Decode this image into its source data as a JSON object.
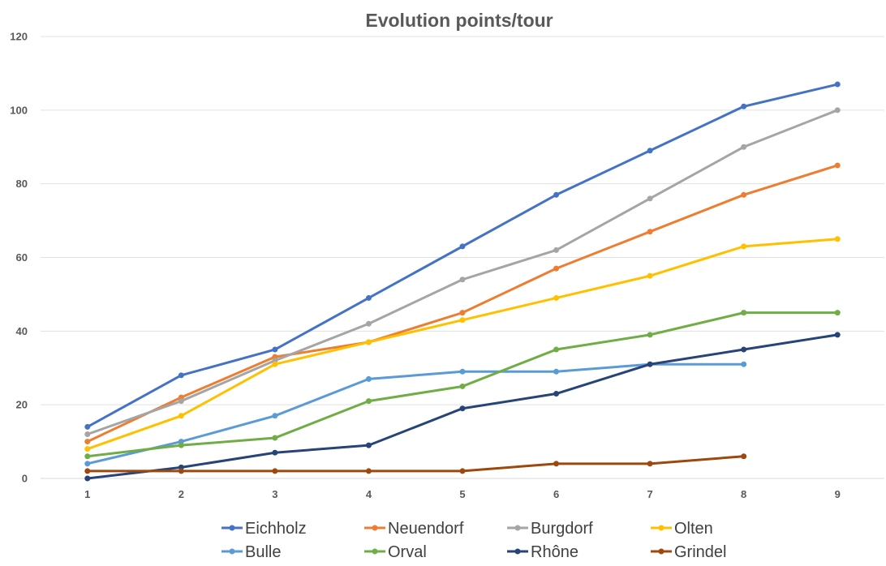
{
  "chart_data": {
    "type": "line",
    "title": "Evolution points/tour",
    "xlabel": "",
    "ylabel": "",
    "x": [
      1,
      2,
      3,
      4,
      5,
      6,
      7,
      8,
      9
    ],
    "ylim": [
      0,
      120
    ],
    "yticks": [
      0,
      20,
      40,
      60,
      80,
      100,
      120
    ],
    "grid": true,
    "legend_position": "bottom",
    "series": [
      {
        "name": "Eichholz",
        "color": "#4472C4",
        "values": [
          14,
          28,
          35,
          49,
          63,
          77,
          89,
          101,
          107
        ]
      },
      {
        "name": "Neuendorf",
        "color": "#ED7D31",
        "values": [
          10,
          22,
          33,
          37,
          45,
          57,
          67,
          77,
          85
        ]
      },
      {
        "name": "Burgdorf",
        "color": "#A5A5A5",
        "values": [
          12,
          21,
          32,
          42,
          54,
          62,
          76,
          90,
          100
        ]
      },
      {
        "name": "Olten",
        "color": "#FFC000",
        "values": [
          8,
          17,
          31,
          37,
          43,
          49,
          55,
          63,
          65
        ]
      },
      {
        "name": "Bulle",
        "color": "#5B9BD5",
        "values": [
          4,
          10,
          17,
          27,
          29,
          29,
          31,
          31,
          null
        ]
      },
      {
        "name": "Orval",
        "color": "#70AD47",
        "values": [
          6,
          9,
          11,
          21,
          25,
          35,
          39,
          45,
          45
        ]
      },
      {
        "name": "Rhône",
        "color": "#264478",
        "values": [
          0,
          3,
          7,
          9,
          19,
          23,
          31,
          35,
          39
        ]
      },
      {
        "name": "Grindel",
        "color": "#9E480E",
        "values": [
          2,
          2,
          2,
          2,
          2,
          4,
          4,
          6,
          null
        ]
      }
    ]
  }
}
